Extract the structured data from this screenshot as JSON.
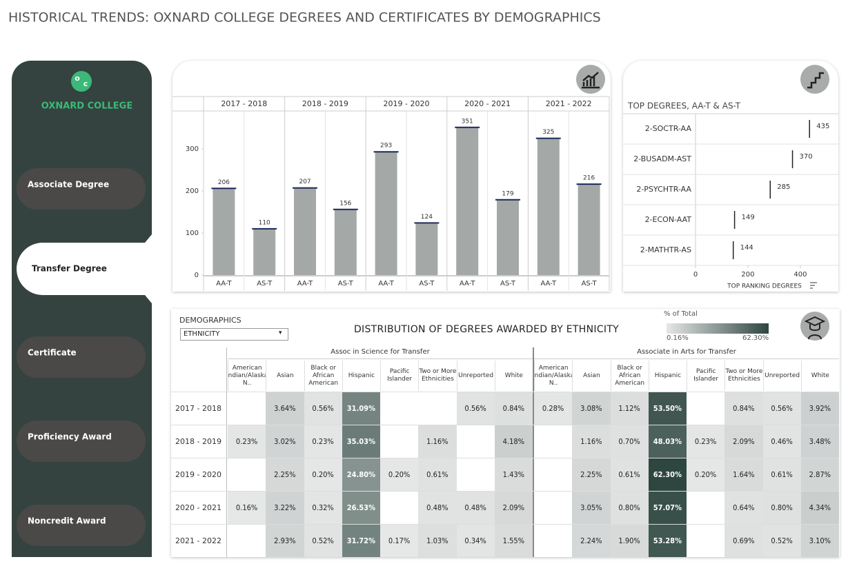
{
  "header": {
    "title": "HISTORICAL TRENDS: OXNARD COLLEGE DEGREES AND CERTIFICATES BY DEMOGRAPHICS"
  },
  "sidebar": {
    "logo_text": "OXNARD COLLEGE",
    "items": [
      "Associate Degree",
      "Transfer Degree",
      "Certificate",
      "Proficiency Award",
      "Noncredit Award"
    ],
    "selected": 1
  },
  "chart_data": [
    {
      "type": "grouped_bar",
      "categories": [
        "2017 - 2018",
        "2018 - 2019",
        "2019 - 2020",
        "2020 - 2021",
        "2021 - 2022"
      ],
      "series": [
        {
          "name": "AA-T",
          "color": "#a4a9a7",
          "values": [
            206,
            207,
            293,
            351,
            325
          ]
        },
        {
          "name": "AS-T",
          "color": "#a4a9a7",
          "values": [
            110,
            156,
            124,
            179,
            216
          ]
        }
      ],
      "cap_color": "#1c2758",
      "ylim": [
        0,
        390
      ],
      "yticks": [
        0,
        100,
        200,
        300
      ]
    },
    {
      "type": "hbar_marker",
      "title": "TOP DEGREES, AA-T & AS-T",
      "categories": [
        "2-SOCTR-AA",
        "2-BUSADM-AST",
        "2-PSYCHTR-AA",
        "2-ECON-AAT",
        "2-MATHTR-AS"
      ],
      "values": [
        435,
        370,
        285,
        149,
        144
      ],
      "color": "#222222",
      "xlim": [
        0,
        537
      ],
      "xticks": [
        0,
        200,
        400
      ],
      "x_label": "TOP RANKING DEGREES"
    },
    {
      "type": "heatmap",
      "filter_label": "DEMOGRAPHICS",
      "filter_value": "ETHNICITY",
      "title": "DISTRIBUTION OF DEGREES AWARDED BY ETHNICITY",
      "legend_title": "% of Total",
      "color_range": [
        {
          "value": 0.16,
          "label": "0.16%"
        },
        {
          "value": 62.3,
          "label": "62.30%"
        }
      ],
      "colors": [
        "#e6e7e7",
        "#2e4640"
      ],
      "groups": [
        "Assoc in Science for Transfer",
        "Associate in Arts for Transfer"
      ],
      "columns": [
        "American Indian/Alaska N..",
        "Asian",
        "Black or African American",
        "Hispanic",
        "Pacific Islander",
        "Two or More Ethnicities",
        "Unreported",
        "White"
      ],
      "rows": [
        "2017 - 2018",
        "2018 - 2019",
        "2019 - 2020",
        "2020 - 2021",
        "2021 - 2022"
      ],
      "values": [
        [
          null,
          3.64,
          0.56,
          31.09,
          null,
          null,
          0.56,
          0.84,
          0.28,
          3.08,
          1.12,
          53.5,
          null,
          0.84,
          0.56,
          3.92
        ],
        [
          0.23,
          3.02,
          0.23,
          35.03,
          null,
          1.16,
          null,
          4.18,
          null,
          1.16,
          0.7,
          48.03,
          0.23,
          2.09,
          0.46,
          3.48
        ],
        [
          null,
          2.25,
          0.2,
          24.8,
          0.2,
          0.61,
          null,
          1.43,
          null,
          2.25,
          0.61,
          62.3,
          0.2,
          1.64,
          0.61,
          2.87
        ],
        [
          0.16,
          3.22,
          0.32,
          26.53,
          null,
          0.48,
          0.48,
          2.09,
          null,
          3.05,
          0.8,
          57.07,
          null,
          0.64,
          0.8,
          4.34
        ],
        [
          null,
          2.93,
          0.52,
          31.72,
          0.17,
          1.03,
          0.34,
          1.55,
          null,
          2.24,
          1.9,
          53.28,
          null,
          0.69,
          0.52,
          3.1
        ]
      ],
      "value_labels": [
        [
          null,
          "3.64%",
          "0.56%",
          "31.09%",
          null,
          null,
          "0.56%",
          "0.84%",
          "0.28%",
          "3.08%",
          "1.12%",
          "53.50%",
          null,
          "0.84%",
          "0.56%",
          "3.92%"
        ],
        [
          "0.23%",
          "3.02%",
          "0.23%",
          "35.03%",
          null,
          "1.16%",
          null,
          "4.18%",
          null,
          "1.16%",
          "0.70%",
          "48.03%",
          "0.23%",
          "2.09%",
          "0.46%",
          "3.48%"
        ],
        [
          null,
          "2.25%",
          "0.20%",
          "24.80%",
          "0.20%",
          "0.61%",
          null,
          "1.43%",
          null,
          "2.25%",
          "0.61%",
          "62.30%",
          "0.20%",
          "1.64%",
          "0.61%",
          "2.87%"
        ],
        [
          "0.16%",
          "3.22%",
          "0.32%",
          "26.53%",
          null,
          "0.48%",
          "0.48%",
          "2.09%",
          null,
          "3.05%",
          "0.80%",
          "57.07%",
          null,
          "0.64%",
          "0.80%",
          "4.34%"
        ],
        [
          null,
          "2.93%",
          "0.52%",
          "31.72%",
          "0.17%",
          "1.03%",
          "0.34%",
          "1.55%",
          null,
          "2.24%",
          "1.90%",
          "53.28%",
          null,
          "0.69%",
          "0.52%",
          "3.10%"
        ]
      ]
    }
  ]
}
